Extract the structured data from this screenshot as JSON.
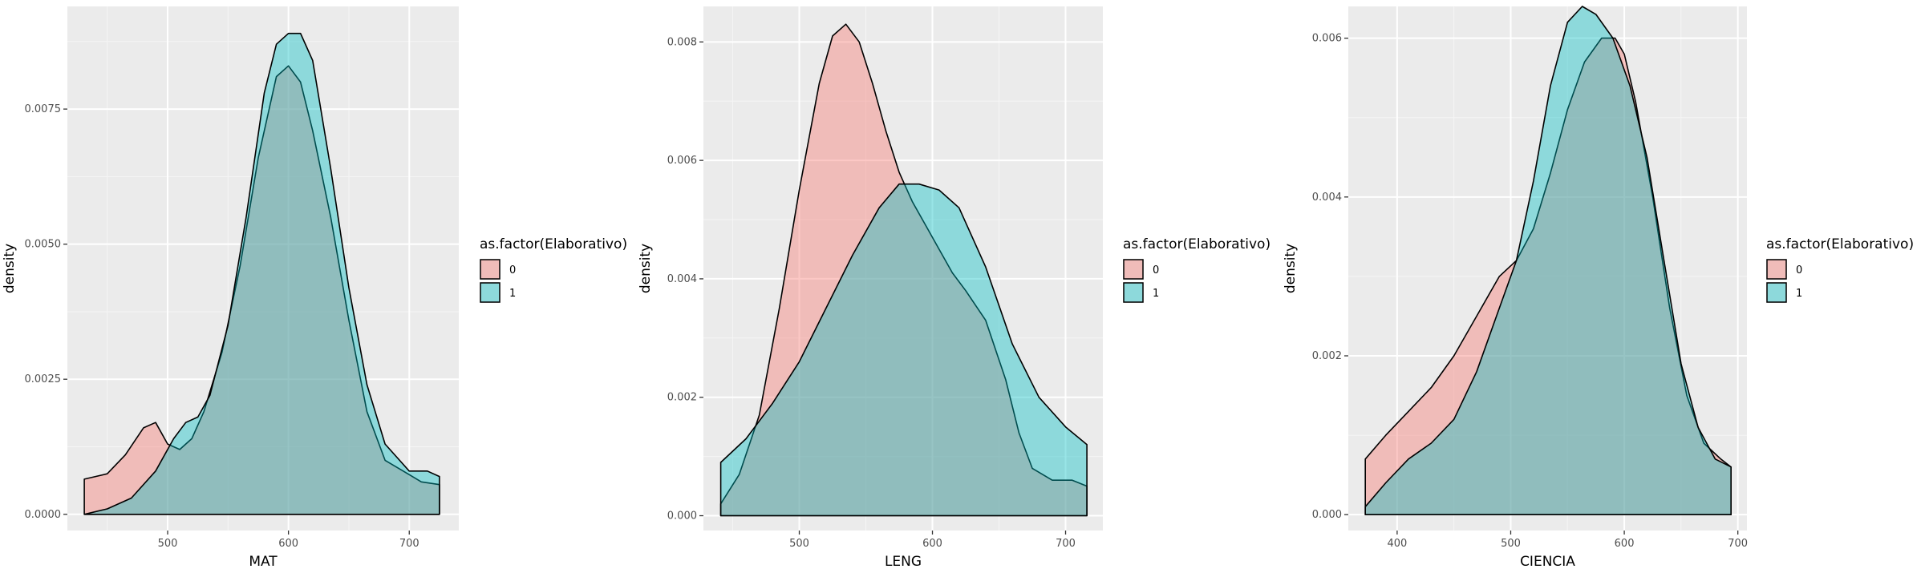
{
  "chart_data": [
    {
      "type": "area",
      "xlabel": "MAT",
      "ylabel": "density",
      "xlim": [
        417,
        741
      ],
      "ylim": [
        -0.0003,
        0.0094
      ],
      "x_ticks": [
        500,
        600,
        700
      ],
      "y_ticks": [
        0.0,
        0.0025,
        0.005,
        0.0075
      ],
      "y_tick_labels": [
        "0.0000",
        "0.0025",
        "0.0050",
        "0.0075"
      ],
      "grid": true,
      "legend": {
        "title": "as.factor(Elaborativo)",
        "entries": [
          "0",
          "1"
        ],
        "position": "right"
      },
      "series": [
        {
          "group": "0",
          "x": [
            431,
            450,
            465,
            480,
            490,
            500,
            510,
            520,
            530,
            545,
            560,
            575,
            590,
            600,
            610,
            620,
            635,
            650,
            665,
            680,
            695,
            710,
            725
          ],
          "y": [
            0.00065,
            0.00075,
            0.0011,
            0.0016,
            0.0017,
            0.0013,
            0.0012,
            0.0014,
            0.0019,
            0.003,
            0.0046,
            0.0066,
            0.0081,
            0.0083,
            0.008,
            0.0071,
            0.0055,
            0.0036,
            0.0019,
            0.001,
            0.0008,
            0.0006,
            0.00055
          ]
        },
        {
          "group": "1",
          "x": [
            431,
            450,
            470,
            490,
            505,
            515,
            525,
            535,
            550,
            565,
            580,
            590,
            600,
            610,
            620,
            635,
            650,
            665,
            680,
            700,
            715,
            725
          ],
          "y": [
            0.0,
            0.0001,
            0.0003,
            0.0008,
            0.0014,
            0.0017,
            0.0018,
            0.0022,
            0.0035,
            0.0055,
            0.0078,
            0.0087,
            0.0089,
            0.0089,
            0.0084,
            0.0064,
            0.0042,
            0.0024,
            0.0013,
            0.0008,
            0.0008,
            0.0007
          ]
        }
      ]
    },
    {
      "type": "area",
      "xlabel": "LENG",
      "ylabel": "density",
      "xlim": [
        428,
        728
      ],
      "ylim": [
        -0.00025,
        0.0086
      ],
      "x_ticks": [
        500,
        600,
        700
      ],
      "y_ticks": [
        0.0,
        0.002,
        0.004,
        0.006,
        0.008
      ],
      "y_tick_labels": [
        "0.000",
        "0.002",
        "0.004",
        "0.006",
        "0.008"
      ],
      "grid": true,
      "legend": {
        "title": "as.factor(Elaborativo)",
        "entries": [
          "0",
          "1"
        ],
        "position": "right"
      },
      "series": [
        {
          "group": "0",
          "x": [
            441,
            455,
            470,
            485,
            500,
            515,
            525,
            535,
            545,
            555,
            565,
            575,
            585,
            595,
            605,
            615,
            625,
            640,
            655,
            665,
            675,
            690,
            705,
            716
          ],
          "y": [
            0.0002,
            0.0007,
            0.0017,
            0.0035,
            0.0055,
            0.0073,
            0.0081,
            0.0083,
            0.008,
            0.0073,
            0.0065,
            0.0058,
            0.0053,
            0.0049,
            0.0045,
            0.0041,
            0.0038,
            0.0033,
            0.0023,
            0.0014,
            0.0008,
            0.0006,
            0.0006,
            0.0005
          ]
        },
        {
          "group": "1",
          "x": [
            441,
            460,
            480,
            500,
            520,
            540,
            560,
            575,
            590,
            605,
            620,
            640,
            660,
            680,
            700,
            716
          ],
          "y": [
            0.0009,
            0.0013,
            0.0019,
            0.0026,
            0.0035,
            0.0044,
            0.0052,
            0.0056,
            0.0056,
            0.0055,
            0.0052,
            0.0042,
            0.0029,
            0.002,
            0.0015,
            0.0012
          ]
        }
      ]
    },
    {
      "type": "area",
      "xlabel": "CIENCIA",
      "ylabel": "density",
      "xlim": [
        357,
        708
      ],
      "ylim": [
        -0.0002,
        0.0064
      ],
      "x_ticks": [
        400,
        500,
        600,
        700
      ],
      "y_ticks": [
        0.0,
        0.002,
        0.004,
        0.006
      ],
      "y_tick_labels": [
        "0.000",
        "0.002",
        "0.004",
        "0.006"
      ],
      "grid": true,
      "legend": {
        "title": "as.factor(Elaborativo)",
        "entries": [
          "0",
          "1"
        ],
        "position": "right"
      },
      "series": [
        {
          "group": "0",
          "x": [
            372,
            390,
            410,
            430,
            450,
            470,
            490,
            505,
            520,
            535,
            550,
            565,
            580,
            592,
            600,
            610,
            625,
            640,
            655,
            670,
            685,
            694
          ],
          "y": [
            0.0007,
            0.001,
            0.0013,
            0.0016,
            0.002,
            0.0025,
            0.003,
            0.0032,
            0.0036,
            0.0043,
            0.0051,
            0.0057,
            0.006,
            0.006,
            0.0058,
            0.0052,
            0.004,
            0.0026,
            0.0015,
            0.0009,
            0.0007,
            0.0006
          ]
        },
        {
          "group": "1",
          "x": [
            372,
            390,
            410,
            430,
            450,
            470,
            490,
            505,
            520,
            535,
            550,
            563,
            575,
            590,
            605,
            620,
            635,
            650,
            665,
            680,
            694
          ],
          "y": [
            0.0001,
            0.0004,
            0.0007,
            0.0009,
            0.0012,
            0.0018,
            0.0026,
            0.0032,
            0.0042,
            0.0054,
            0.0062,
            0.0064,
            0.0063,
            0.006,
            0.0054,
            0.0045,
            0.0032,
            0.0019,
            0.0011,
            0.0007,
            0.0006
          ]
        }
      ]
    }
  ],
  "colors": {
    "group_0_fill": "#f8766d",
    "group_1_fill": "#00bfc4",
    "panel_background": "#ebebeb",
    "grid_major": "#ffffff"
  }
}
